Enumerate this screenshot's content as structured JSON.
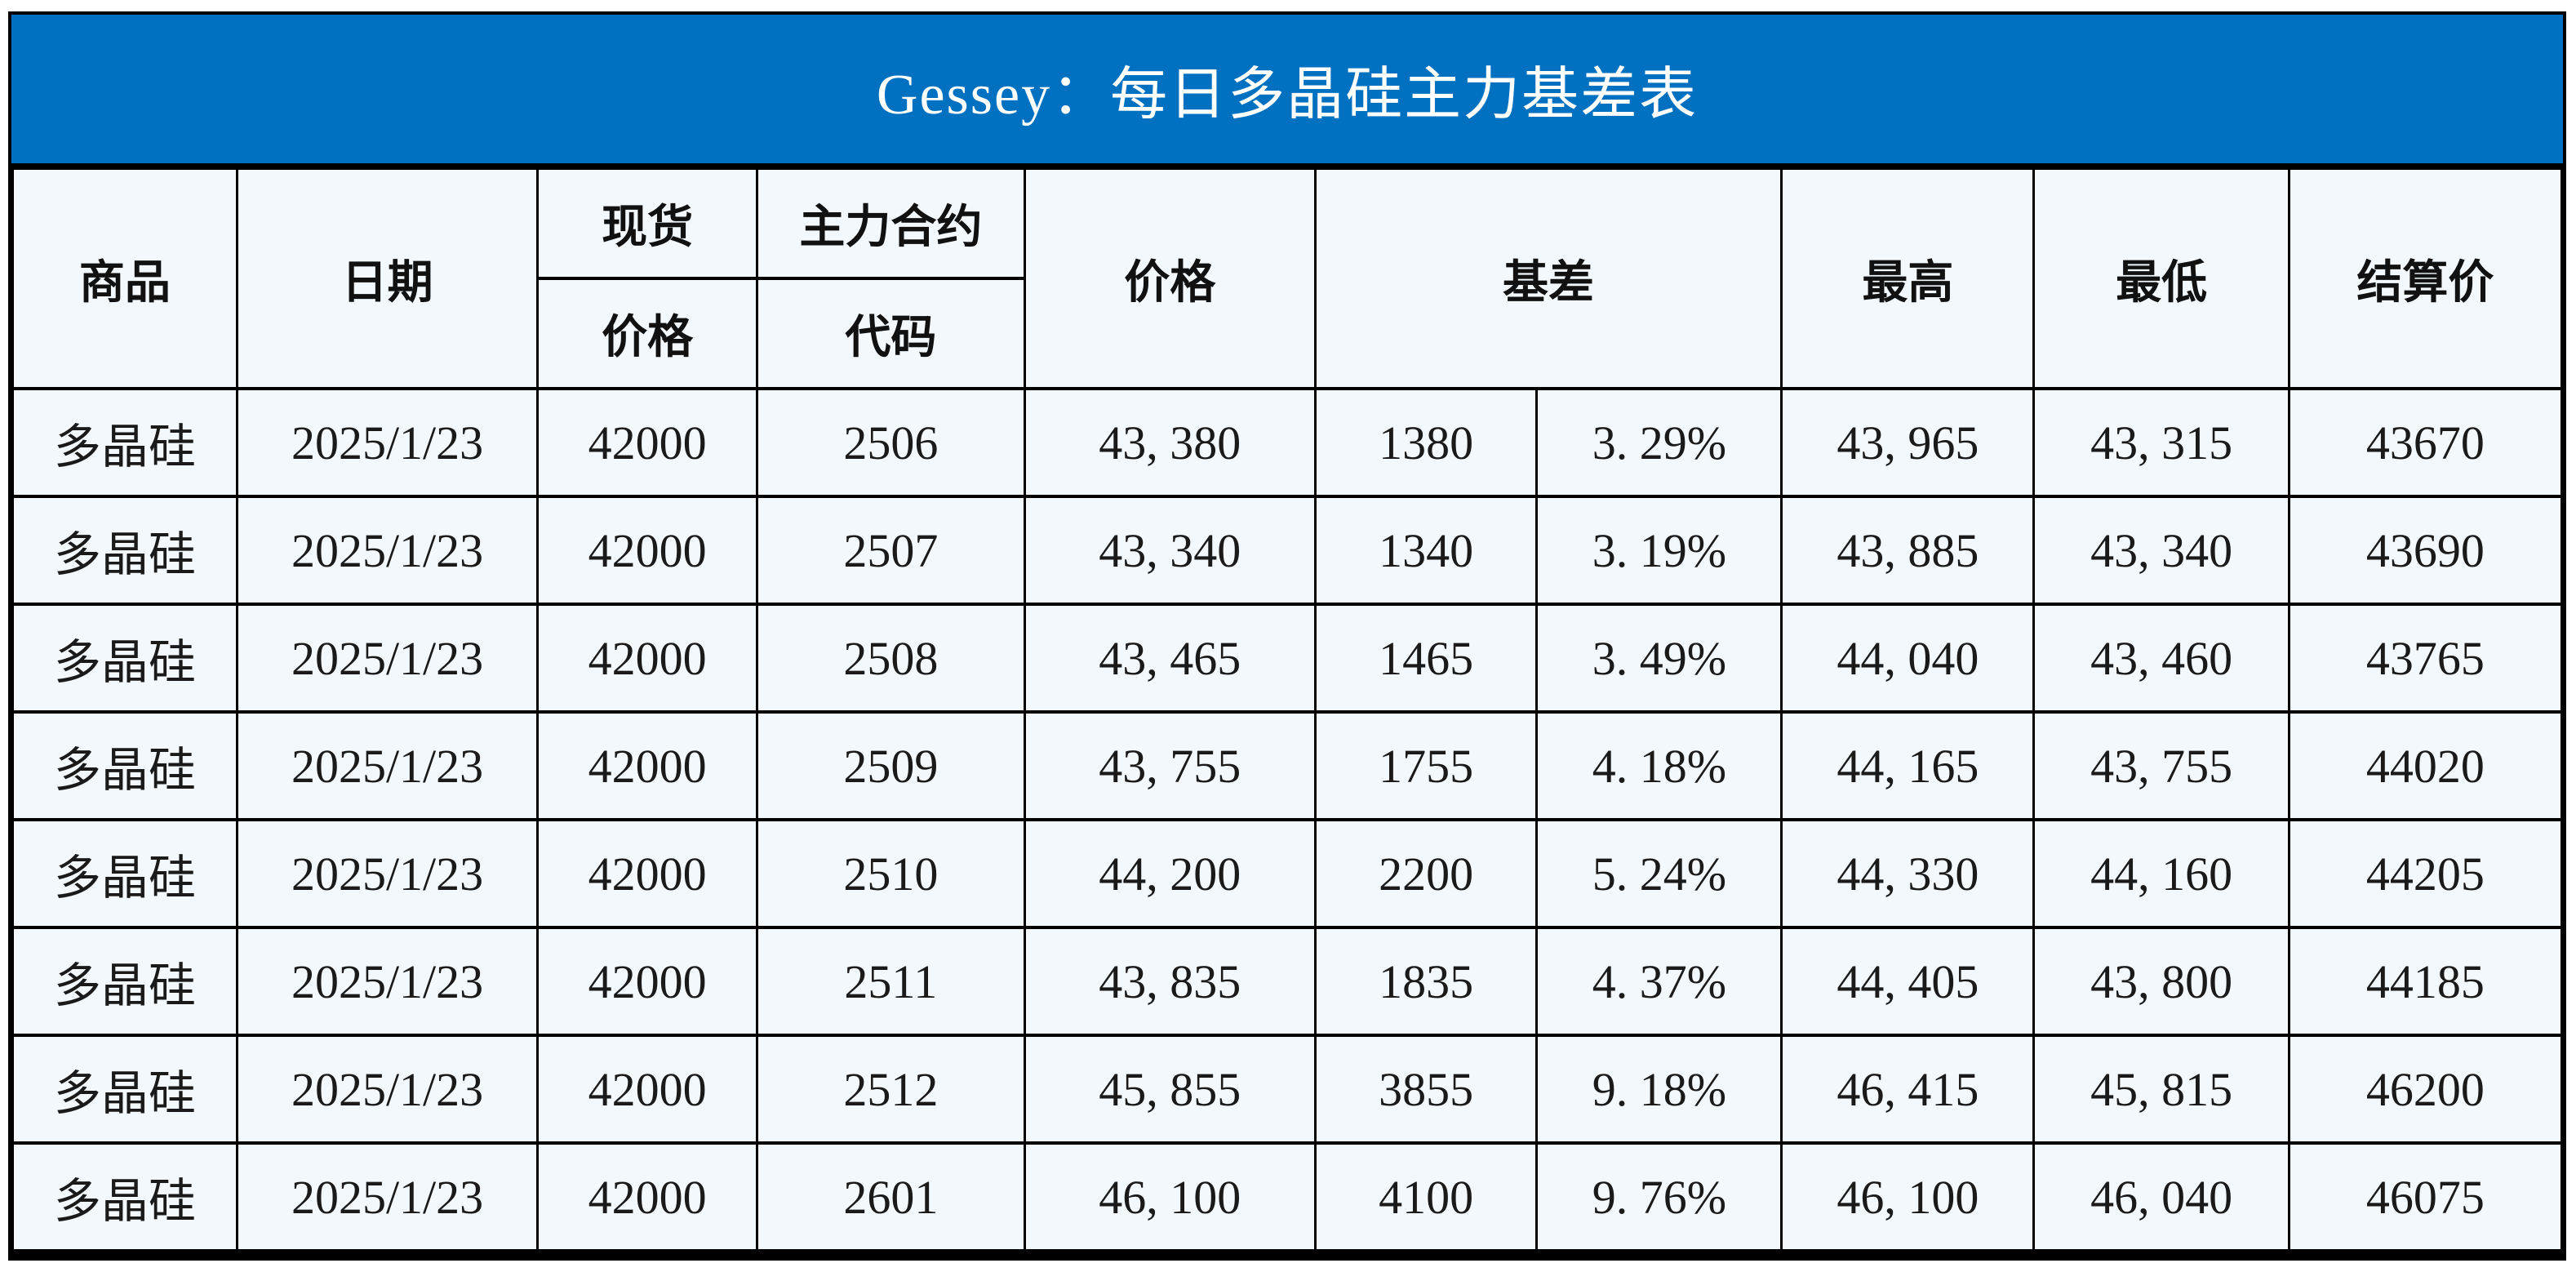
{
  "chart_data": {
    "type": "table",
    "title": "Gessey：每日多晶硅主力基差表",
    "header": {
      "commodity": "商品",
      "date": "日期",
      "spot_line1": "现货",
      "spot_line2": "价格",
      "contract_line1": "主力合约",
      "contract_line2": "代码",
      "price": "价格",
      "basis": "基差",
      "high": "最高",
      "low": "最低",
      "settlement": "结算价"
    },
    "rows": [
      {
        "commodity": "多晶硅",
        "date": "2025/1/23",
        "spot_price": "42000",
        "contract_code": "2506",
        "price": "43, 380",
        "basis": "1380",
        "basis_pct": "3. 29%",
        "high": "43, 965",
        "low": "43, 315",
        "settlement": "43670"
      },
      {
        "commodity": "多晶硅",
        "date": "2025/1/23",
        "spot_price": "42000",
        "contract_code": "2507",
        "price": "43, 340",
        "basis": "1340",
        "basis_pct": "3. 19%",
        "high": "43, 885",
        "low": "43, 340",
        "settlement": "43690"
      },
      {
        "commodity": "多晶硅",
        "date": "2025/1/23",
        "spot_price": "42000",
        "contract_code": "2508",
        "price": "43, 465",
        "basis": "1465",
        "basis_pct": "3. 49%",
        "high": "44, 040",
        "low": "43, 460",
        "settlement": "43765"
      },
      {
        "commodity": "多晶硅",
        "date": "2025/1/23",
        "spot_price": "42000",
        "contract_code": "2509",
        "price": "43, 755",
        "basis": "1755",
        "basis_pct": "4. 18%",
        "high": "44, 165",
        "low": "43, 755",
        "settlement": "44020"
      },
      {
        "commodity": "多晶硅",
        "date": "2025/1/23",
        "spot_price": "42000",
        "contract_code": "2510",
        "price": "44, 200",
        "basis": "2200",
        "basis_pct": "5. 24%",
        "high": "44, 330",
        "low": "44, 160",
        "settlement": "44205"
      },
      {
        "commodity": "多晶硅",
        "date": "2025/1/23",
        "spot_price": "42000",
        "contract_code": "2511",
        "price": "43, 835",
        "basis": "1835",
        "basis_pct": "4. 37%",
        "high": "44, 405",
        "low": "43, 800",
        "settlement": "44185"
      },
      {
        "commodity": "多晶硅",
        "date": "2025/1/23",
        "spot_price": "42000",
        "contract_code": "2512",
        "price": "45, 855",
        "basis": "3855",
        "basis_pct": "9. 18%",
        "high": "46, 415",
        "low": "45, 815",
        "settlement": "46200"
      },
      {
        "commodity": "多晶硅",
        "date": "2025/1/23",
        "spot_price": "42000",
        "contract_code": "2601",
        "price": "46, 100",
        "basis": "4100",
        "basis_pct": "9. 76%",
        "high": "46, 100",
        "low": "46, 040",
        "settlement": "46075"
      }
    ]
  },
  "colors": {
    "title_bar_bg": "#0070c0",
    "title_text": "#ffffff",
    "row_bg": "#f2f8fc",
    "border": "#000000",
    "commodity_date_text": "#2e55a5",
    "basis_text": "#fe0000",
    "number_text": "#1a1a1a"
  }
}
